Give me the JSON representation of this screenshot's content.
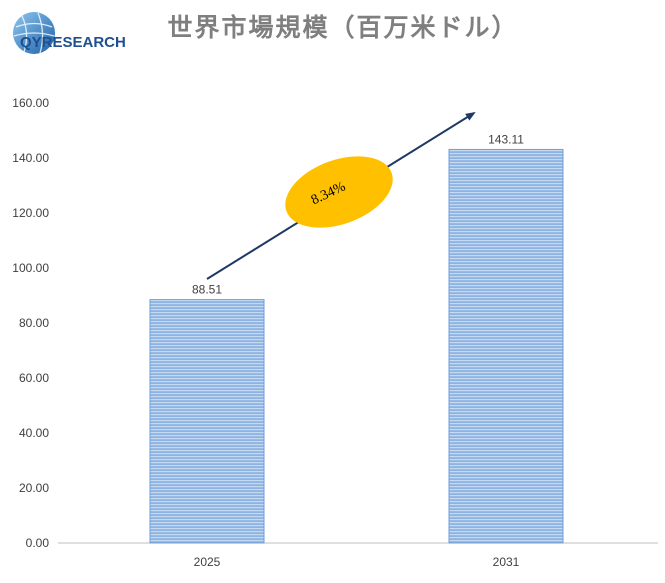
{
  "logo": {
    "text_main": "QYRESEARCH"
  },
  "chart_data": {
    "type": "bar",
    "title": "世界市場規模（百万米ドル）",
    "categories": [
      "2025",
      "2031"
    ],
    "values": [
      88.51,
      143.11
    ],
    "data_labels": [
      "88.51",
      "143.11"
    ],
    "xlabel": "",
    "ylabel": "",
    "ylim": [
      0,
      160
    ],
    "yticks": [
      "0.00",
      "20.00",
      "40.00",
      "60.00",
      "80.00",
      "100.00",
      "120.00",
      "140.00",
      "160.00"
    ],
    "grid": false,
    "legend": "none",
    "annotation": {
      "label": "8.34%",
      "kind": "CAGR growth arrow"
    },
    "colors": {
      "bar": "#8db3e2",
      "bar_stripe": "#c5d9f1",
      "bar_edge": "#6f9fd8",
      "arrow": "#1f3864",
      "ellipse": "#ffc000",
      "title": "#7f7f7f",
      "axis": "#bfbfbf",
      "tick": "#404040"
    }
  }
}
